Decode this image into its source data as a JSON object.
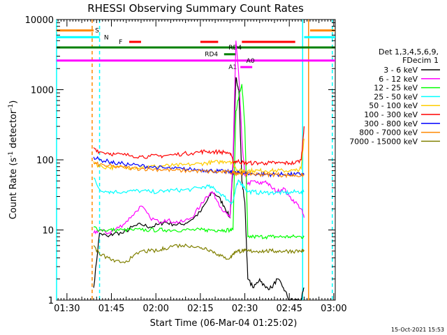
{
  "chart_data": {
    "type": "line",
    "title": "RHESSI Observing Summary Count Rates",
    "xlabel": "Start Time (06-Mar-04 01:25:02)",
    "ylabel_main": "Count Rate (s",
    "ylabel_sup": "-1",
    "ylabel_mid": " detector",
    "ylabel_sup2": "-1",
    "ylabel_end": ")",
    "yscale": "log",
    "ylim": [
      1,
      10000
    ],
    "xlim_minutes": [
      1.5,
      95.5
    ],
    "yticks": [
      {
        "value": 1,
        "label": "1"
      },
      {
        "value": 10,
        "label": "10"
      },
      {
        "value": 100,
        "label": "100"
      },
      {
        "value": 1000,
        "label": "1000"
      },
      {
        "value": 10000,
        "label": "10000"
      }
    ],
    "xticks": [
      {
        "minutes": 5,
        "label": "01:30"
      },
      {
        "minutes": 20,
        "label": "01:45"
      },
      {
        "minutes": 35,
        "label": "02:00"
      },
      {
        "minutes": 50,
        "label": "02:15"
      },
      {
        "minutes": 65,
        "label": "02:30"
      },
      {
        "minutes": 80,
        "label": "02:45"
      },
      {
        "minutes": 95,
        "label": "03:00"
      }
    ],
    "legend": {
      "header1": "Det 1,3,4,5,6,9,",
      "header2": "FDecim 1",
      "placement": "right"
    },
    "series": [
      {
        "name": "3 - 6 keV",
        "color": "#000000",
        "x": [
          14,
          16,
          19,
          21,
          24,
          27,
          30,
          33,
          36,
          38,
          41,
          44,
          47,
          50,
          52,
          54,
          56,
          58,
          60,
          61,
          62,
          63,
          64,
          65,
          66,
          68,
          70,
          72,
          74,
          76,
          78,
          80,
          82,
          84,
          85
        ],
        "y": [
          1.5,
          9,
          8,
          9,
          9,
          11,
          12,
          11,
          12,
          13,
          12,
          12,
          14,
          18,
          25,
          35,
          30,
          22,
          15,
          80,
          1500,
          1000,
          50,
          25,
          2,
          1.5,
          2,
          1.5,
          1.5,
          2,
          1.5,
          1,
          1,
          1,
          1.5
        ]
      },
      {
        "name": "6 - 12 keV",
        "color": "#ff00ff",
        "x": [
          14,
          16,
          19,
          21,
          24,
          27,
          30,
          33,
          36,
          38,
          41,
          44,
          47,
          50,
          52,
          54,
          56,
          58,
          60,
          61,
          62,
          63,
          64,
          65,
          66,
          68,
          70,
          72,
          74,
          76,
          78,
          80,
          82,
          84,
          85
        ],
        "y": [
          9,
          10,
          9,
          10,
          12,
          16,
          22,
          15,
          13,
          14,
          13,
          13,
          15,
          22,
          30,
          35,
          25,
          18,
          15,
          100,
          5000,
          1500,
          200,
          60,
          45,
          50,
          45,
          50,
          40,
          35,
          40,
          30,
          25,
          20,
          15
        ]
      },
      {
        "name": "12 - 25 keV",
        "color": "#00ff00",
        "x": [
          14,
          16,
          19,
          21,
          24,
          27,
          30,
          33,
          36,
          38,
          41,
          44,
          47,
          50,
          52,
          54,
          56,
          58,
          60,
          61,
          62,
          63,
          64,
          65,
          66,
          68,
          70,
          72,
          74,
          76,
          78,
          80,
          82,
          84,
          85
        ],
        "y": [
          11,
          10,
          10,
          10,
          10,
          10,
          10,
          10,
          10,
          10,
          10,
          10,
          10,
          10,
          10,
          10,
          10,
          10,
          10,
          10,
          500,
          800,
          1200,
          300,
          8,
          8,
          8,
          8,
          8,
          8,
          8,
          8,
          8,
          8,
          8
        ]
      },
      {
        "name": "25 - 50 keV",
        "color": "#00ffff",
        "x": [
          14,
          16,
          19,
          21,
          24,
          27,
          30,
          33,
          36,
          38,
          41,
          44,
          47,
          50,
          52,
          54,
          56,
          58,
          60,
          61,
          62,
          63,
          64,
          65,
          66,
          68,
          70,
          72,
          74,
          76,
          78,
          80,
          82,
          84,
          85
        ],
        "y": [
          55,
          38,
          35,
          35,
          35,
          36,
          36,
          35,
          35,
          36,
          37,
          37,
          38,
          40,
          42,
          40,
          35,
          30,
          25,
          25,
          40,
          50,
          45,
          40,
          35,
          35,
          34,
          34,
          34,
          34,
          34,
          34,
          35,
          35,
          35
        ]
      },
      {
        "name": "50 - 100 keV",
        "color": "#ffcc00",
        "x": [
          14,
          16,
          19,
          21,
          24,
          27,
          30,
          33,
          36,
          38,
          41,
          44,
          47,
          50,
          52,
          54,
          56,
          58,
          60,
          61,
          62,
          63,
          64,
          65,
          66,
          68,
          70,
          72,
          74,
          76,
          78,
          80,
          82,
          84,
          85
        ],
        "y": [
          95,
          80,
          78,
          78,
          78,
          78,
          79,
          80,
          81,
          82,
          83,
          84,
          86,
          88,
          90,
          92,
          93,
          95,
          96,
          90,
          75,
          70,
          70,
          70,
          70,
          70,
          70,
          70,
          70,
          70,
          70,
          70,
          70,
          75,
          200
        ]
      },
      {
        "name": "100 - 300 keV",
        "color": "#ff0000",
        "x": [
          14,
          16,
          19,
          21,
          24,
          27,
          30,
          33,
          36,
          38,
          41,
          44,
          47,
          50,
          52,
          54,
          56,
          58,
          60,
          61,
          62,
          63,
          64,
          65,
          66,
          68,
          70,
          72,
          74,
          76,
          78,
          80,
          82,
          84,
          85
        ],
        "y": [
          150,
          130,
          125,
          120,
          118,
          115,
          112,
          112,
          113,
          115,
          118,
          122,
          125,
          130,
          132,
          130,
          130,
          128,
          125,
          95,
          95,
          95,
          92,
          90,
          90,
          90,
          90,
          90,
          90,
          90,
          90,
          90,
          90,
          100,
          300
        ]
      },
      {
        "name": "300 - 800 keV",
        "color": "#0000ff",
        "x": [
          14,
          16,
          19,
          21,
          24,
          27,
          30,
          33,
          36,
          38,
          41,
          44,
          47,
          50,
          52,
          54,
          56,
          58,
          60,
          61,
          62,
          63,
          64,
          65,
          66,
          68,
          70,
          72,
          74,
          76,
          78,
          80,
          82,
          84,
          85
        ],
        "y": [
          110,
          100,
          95,
          90,
          88,
          85,
          82,
          80,
          78,
          76,
          75,
          74,
          73,
          72,
          71,
          70,
          69,
          68,
          67,
          66,
          65,
          65,
          64,
          64,
          63,
          63,
          62,
          62,
          62,
          62,
          62,
          62,
          62,
          62,
          62
        ]
      },
      {
        "name": "800 - 7000 keV",
        "color": "#ff8800",
        "x": [
          14,
          16,
          19,
          21,
          24,
          27,
          30,
          33,
          36,
          38,
          41,
          44,
          47,
          50,
          52,
          54,
          56,
          58,
          60,
          61,
          62,
          63,
          64,
          65,
          66,
          68,
          70,
          72,
          74,
          76,
          78,
          80,
          82,
          84,
          85
        ],
        "y": [
          90,
          85,
          82,
          80,
          78,
          76,
          75,
          74,
          73,
          72,
          71,
          70,
          70,
          69,
          68,
          68,
          67,
          67,
          66,
          66,
          65,
          65,
          64,
          64,
          63,
          63,
          62,
          62,
          62,
          62,
          60,
          60,
          60,
          60,
          60
        ]
      },
      {
        "name": "7000 - 15000 keV",
        "color": "#808000",
        "x": [
          14,
          16,
          19,
          21,
          24,
          27,
          30,
          33,
          36,
          38,
          41,
          44,
          47,
          50,
          52,
          54,
          56,
          58,
          60,
          61,
          62,
          63,
          64,
          65,
          66,
          68,
          70,
          72,
          74,
          76,
          78,
          80,
          82,
          84,
          85
        ],
        "y": [
          6,
          4.5,
          4,
          3.5,
          3.5,
          4,
          5,
          5,
          5,
          5.5,
          6,
          6,
          6,
          5.5,
          5.5,
          5,
          4.5,
          4,
          4,
          4.5,
          5,
          5,
          5,
          5,
          5,
          5,
          5,
          5,
          5,
          5,
          5,
          5,
          5,
          5,
          5
        ]
      }
    ],
    "vlines": [
      {
        "minutes": 1.5,
        "color": "#00ffff",
        "style": "solid"
      },
      {
        "minutes": 13.5,
        "color": "#ff8800",
        "style": "dashed"
      },
      {
        "minutes": 16.0,
        "color": "#00ffff",
        "style": "dashed"
      },
      {
        "minutes": 84.5,
        "color": "#00ffff",
        "style": "solid"
      },
      {
        "minutes": 86.5,
        "color": "#ff8800",
        "style": "solid"
      },
      {
        "minutes": 94.5,
        "color": "#00ffff",
        "style": "dashed"
      }
    ],
    "flag_bars": [
      {
        "label": "S",
        "label_color": "#ff8800",
        "color": "#ff8800",
        "y": 7000,
        "segments": [
          [
            1.5,
            14
          ],
          [
            87,
            95.5
          ]
        ],
        "label_at": 14.5
      },
      {
        "label": "N",
        "label_color": "#00ffff",
        "color": "#00ffff",
        "y": 5600,
        "segments": [
          [
            1.5,
            16
          ],
          [
            85,
            95.5
          ]
        ],
        "label_at": 17.5
      },
      {
        "label": "F",
        "label_color": "#ff0000",
        "color": "#ff0000",
        "y": 4800,
        "segments": [
          [
            26,
            30
          ],
          [
            50,
            56
          ],
          [
            64,
            82
          ]
        ],
        "label_at": 22.5
      },
      {
        "label": "RD4",
        "label_color": "#008000",
        "color": "#008000",
        "y": 3200,
        "segments": [
          [
            58,
            62
          ]
        ],
        "label_at": 51.5
      },
      {
        "label": "RD4",
        "label_color": "#008000",
        "color": "#008000",
        "y": 4000,
        "segments": [
          [
            1.5,
            95.5
          ]
        ],
        "label_at": 59.5
      },
      {
        "label": "A1",
        "label_color": "#ff00ff",
        "color": "#ff00ff",
        "y": 2100,
        "segments": [
          [
            63.5,
            67.5
          ]
        ],
        "label_at": 59.5
      },
      {
        "label": "A0",
        "label_color": "#ff00ff",
        "color": "#ff00ff",
        "y": 2600,
        "segments": [
          [
            1.5,
            95.5
          ]
        ],
        "label_at": 65.5
      }
    ],
    "timestamp": "15-Oct-2021 15:53"
  }
}
